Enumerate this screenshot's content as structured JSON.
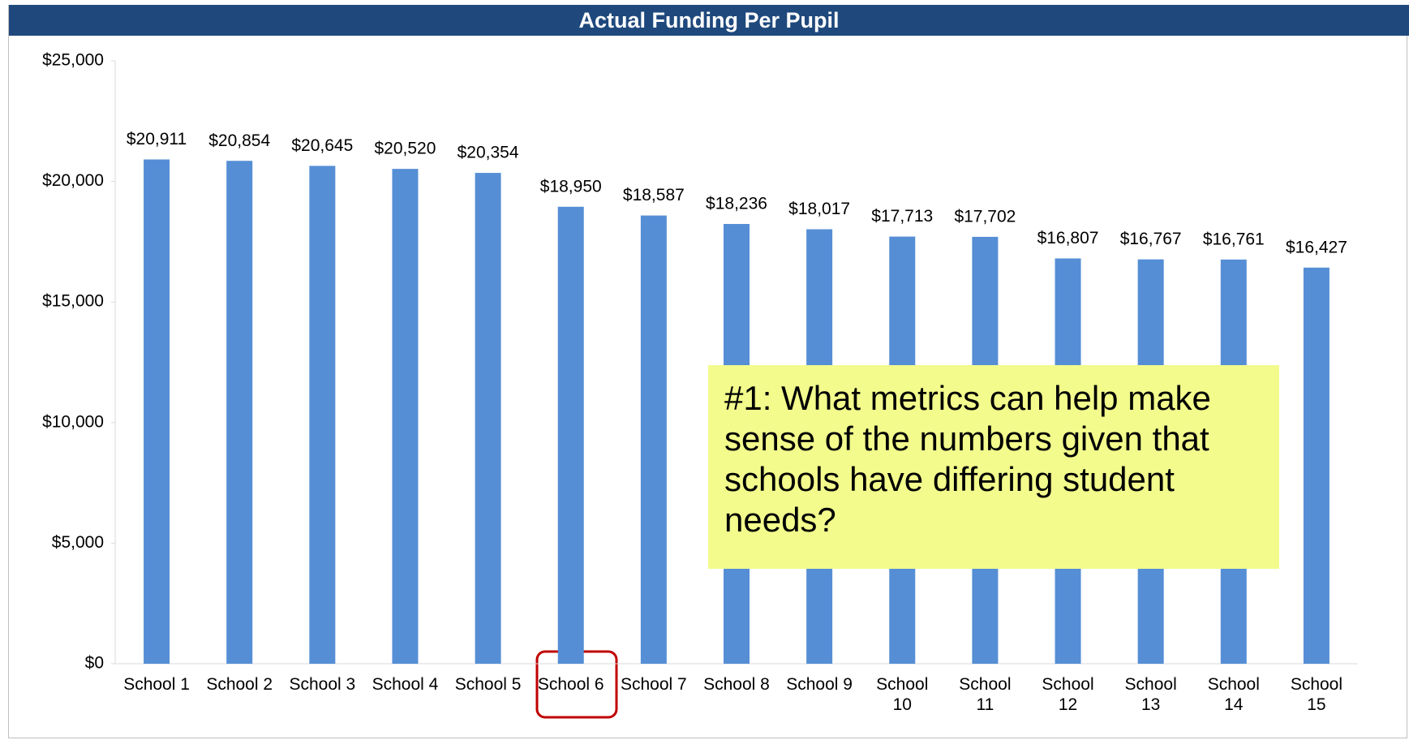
{
  "chart_data": {
    "type": "bar",
    "title": "Actual Funding Per Pupil",
    "categories": [
      "School 1",
      "School 2",
      "School 3",
      "School 4",
      "School 5",
      "School 6",
      "School 7",
      "School 8",
      "School 9",
      "School 10",
      "School 11",
      "School 12",
      "School 13",
      "School 14",
      "School 15"
    ],
    "values": [
      20911,
      20854,
      20645,
      20520,
      20354,
      18950,
      18587,
      18236,
      18017,
      17713,
      17702,
      16807,
      16767,
      16761,
      16427
    ],
    "value_labels": [
      "$20,911",
      "$20,854",
      "$20,645",
      "$20,520",
      "$20,354",
      "$18,950",
      "$18,587",
      "$18,236",
      "$18,017",
      "$17,713",
      "$17,702",
      "$16,807",
      "$16,767",
      "$16,761",
      "$16,427"
    ],
    "color": "#558ed5",
    "ylim": [
      0,
      25000
    ],
    "yticks": [
      {
        "value": 0,
        "label": "$0"
      },
      {
        "value": 5000,
        "label": "$5,000"
      },
      {
        "value": 10000,
        "label": "$10,000"
      },
      {
        "value": 15000,
        "label": "$15,000"
      },
      {
        "value": 20000,
        "label": "$20,000"
      },
      {
        "value": 25000,
        "label": "$25,000"
      }
    ],
    "grid": false,
    "annotations": [
      "#1: What metrics can help make sense of the numbers given that schools have differing student needs?"
    ]
  }
}
